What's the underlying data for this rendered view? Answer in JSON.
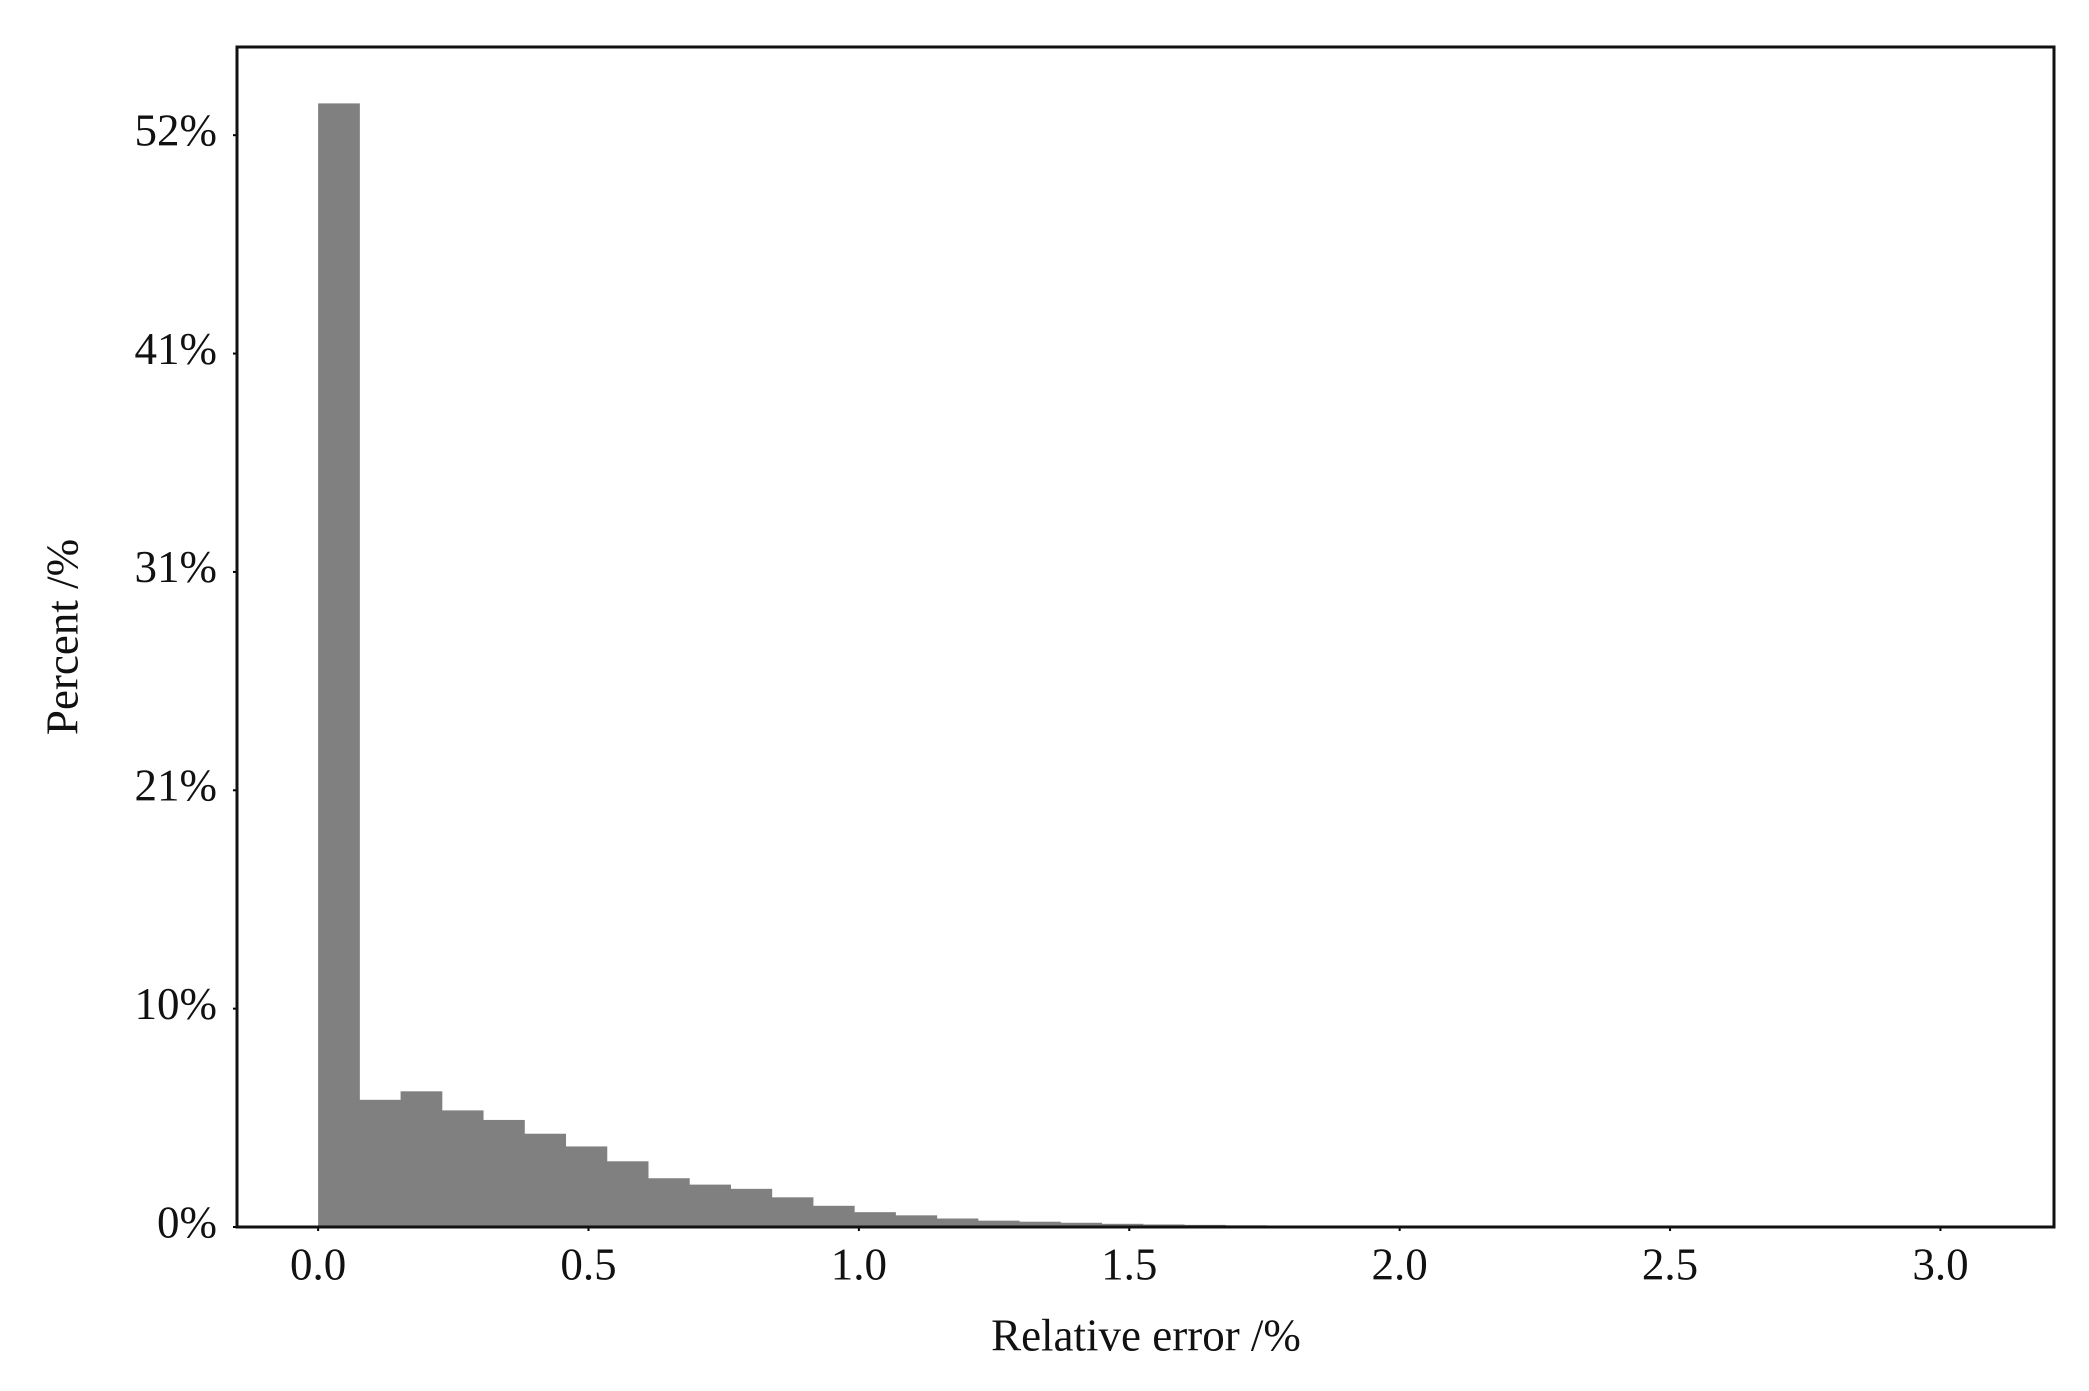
{
  "chart_data": {
    "type": "histogram",
    "xlabel": "Relative error /%",
    "ylabel": "Percent /%",
    "bins": [
      0,
      0.07625,
      0.1525,
      0.22875,
      0.305,
      0.38125,
      0.4575,
      0.53375,
      0.61,
      0.68625,
      0.7625,
      0.83875,
      0.915,
      0.99125,
      1.0675,
      1.14375,
      1.22,
      1.29625,
      1.3725,
      1.44875,
      1.525,
      1.60125,
      1.6775,
      1.75375,
      1.83,
      1.90625,
      1.9825,
      2.05875,
      2.135,
      2.21125,
      2.2875,
      2.36375,
      2.44,
      2.51625,
      2.5925,
      2.66875,
      2.745,
      2.82125,
      2.8975,
      2.97375,
      3.05
    ],
    "values": [
      53.0,
      6.0,
      6.4,
      5.5,
      5.05,
      4.4,
      3.8,
      3.1,
      2.3,
      2.0,
      1.8,
      1.4,
      1.0,
      0.7,
      0.55,
      0.4,
      0.3,
      0.25,
      0.2,
      0.15,
      0.12,
      0.1,
      0.08,
      0.06,
      0.05,
      0.04,
      0.03,
      0.03,
      0.02,
      0.02,
      0.02,
      0.01,
      0.01,
      0.01,
      0.01,
      0.01,
      0.01,
      0.01,
      0.01,
      0.01
    ],
    "color": "#808080",
    "xlim": [
      -0.15,
      3.21
    ],
    "xticks": [
      {
        "value": 0,
        "label": "0.0"
      },
      0.5,
      {
        "value": 1,
        "label": "1.0"
      },
      1.5,
      {
        "value": 2,
        "label": "2.0"
      },
      2.5,
      {
        "value": 3,
        "label": "3.0"
      }
    ],
    "ylim": [
      0,
      55.66
    ],
    "yticks": [
      {
        "value": 0,
        "label": "0%"
      },
      {
        "value": 10.3,
        "label": "10%"
      },
      {
        "value": 20.6,
        "label": "21%"
      },
      {
        "value": 30.9,
        "label": "31%"
      },
      {
        "value": 41.2,
        "label": "41%"
      },
      {
        "value": 51.5,
        "label": "52%"
      }
    ],
    "grid": false
  }
}
